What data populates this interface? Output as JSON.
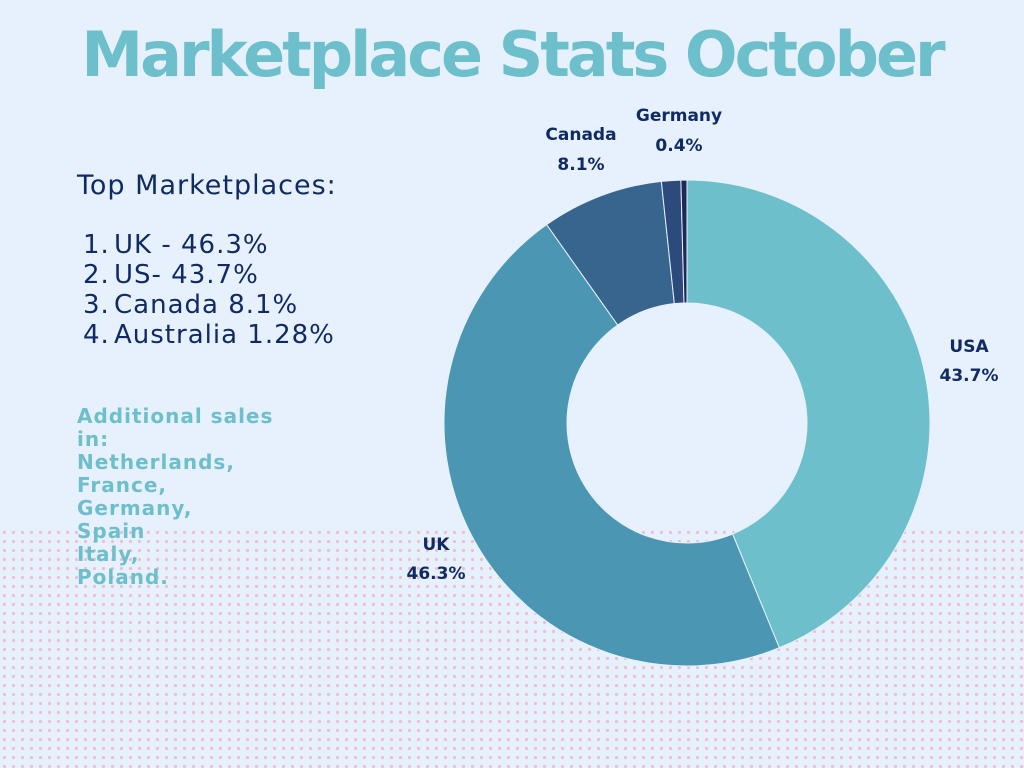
{
  "title": "Marketplace Stats October",
  "top_marketplaces": {
    "heading": "Top Marketplaces:",
    "items": [
      {
        "num": "1.",
        "text": "UK - 46.3%"
      },
      {
        "num": "2.",
        "text": "US- 43.7%"
      },
      {
        "num": "3.",
        "text": "Canada 8.1%"
      },
      {
        "num": "4.",
        "text": "Australia 1.28%"
      }
    ]
  },
  "additional_sales": {
    "lines": [
      "Additional sales",
      "in:",
      "Netherlands,",
      "France,",
      "Germany,",
      "Spain",
      "Italy,",
      "Poland."
    ]
  },
  "colors": {
    "title": "#6dbfcb",
    "text_dark": "#102b63",
    "background": "#e6f1fd"
  },
  "chart_data": {
    "type": "pie",
    "style": "donut",
    "title": "",
    "slices": [
      {
        "name": "USA",
        "value": 43.7,
        "value_label": "43.7%",
        "color": "#6dbfcb"
      },
      {
        "name": "UK",
        "value": 46.3,
        "value_label": "46.3%",
        "color": "#4b96b3"
      },
      {
        "name": "Canada",
        "value": 8.1,
        "value_label": "8.1%",
        "color": "#38658e"
      },
      {
        "name": "",
        "value": 1.28,
        "value_label": "",
        "color": "#2c4a7c"
      },
      {
        "name": "Germany",
        "value": 0.4,
        "value_label": "0.4%",
        "color": "#1e2a55"
      }
    ],
    "direction": "clockwise",
    "start": "top"
  }
}
